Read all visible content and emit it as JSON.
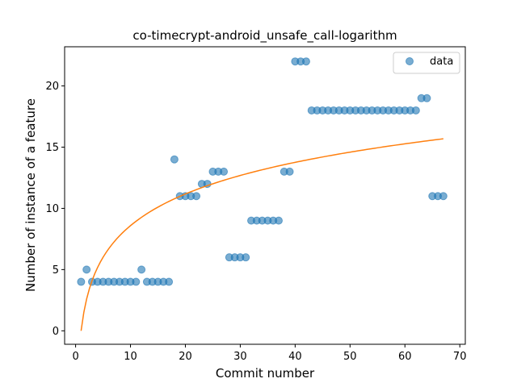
{
  "chart_data": {
    "type": "scatter",
    "title": "co-timecrypt-android_unsafe_call-logarithm",
    "xlabel": "Commit number",
    "ylabel": "Number of instance of a feature",
    "xlim": [
      -2,
      71
    ],
    "ylim": [
      -1.1,
      23.2
    ],
    "xticks": [
      0,
      10,
      20,
      30,
      40,
      50,
      60,
      70
    ],
    "yticks": [
      0,
      5,
      10,
      15,
      20
    ],
    "grid": false,
    "legend": {
      "placement": "top-right",
      "entries": [
        "data"
      ]
    },
    "colors": {
      "scatter": "#1f77b4",
      "fit": "#ff7f0e"
    },
    "series": [
      {
        "name": "data",
        "kind": "scatter",
        "x": [
          1,
          2,
          3,
          4,
          5,
          6,
          7,
          8,
          9,
          10,
          11,
          12,
          13,
          14,
          15,
          16,
          17,
          18,
          19,
          20,
          21,
          22,
          23,
          24,
          25,
          26,
          27,
          28,
          29,
          30,
          31,
          32,
          33,
          34,
          35,
          36,
          37,
          38,
          39,
          40,
          41,
          42,
          43,
          44,
          45,
          46,
          47,
          48,
          49,
          50,
          51,
          52,
          53,
          54,
          55,
          56,
          57,
          58,
          59,
          60,
          61,
          62,
          63,
          64,
          65,
          66,
          67
        ],
        "y": [
          4,
          5,
          4,
          4,
          4,
          4,
          4,
          4,
          4,
          4,
          4,
          5,
          4,
          4,
          4,
          4,
          4,
          14,
          11,
          11,
          11,
          11,
          12,
          12,
          13,
          13,
          13,
          6,
          6,
          6,
          6,
          9,
          9,
          9,
          9,
          9,
          9,
          13,
          13,
          22,
          22,
          22,
          18,
          18,
          18,
          18,
          18,
          18,
          18,
          18,
          18,
          18,
          18,
          18,
          18,
          18,
          18,
          18,
          18,
          18,
          18,
          18,
          19,
          19,
          11,
          11,
          11
        ]
      },
      {
        "kind": "line",
        "fit": {
          "model": "logarithm",
          "a": 3.73,
          "b": 0
        },
        "x_range": [
          1,
          67
        ]
      }
    ]
  }
}
